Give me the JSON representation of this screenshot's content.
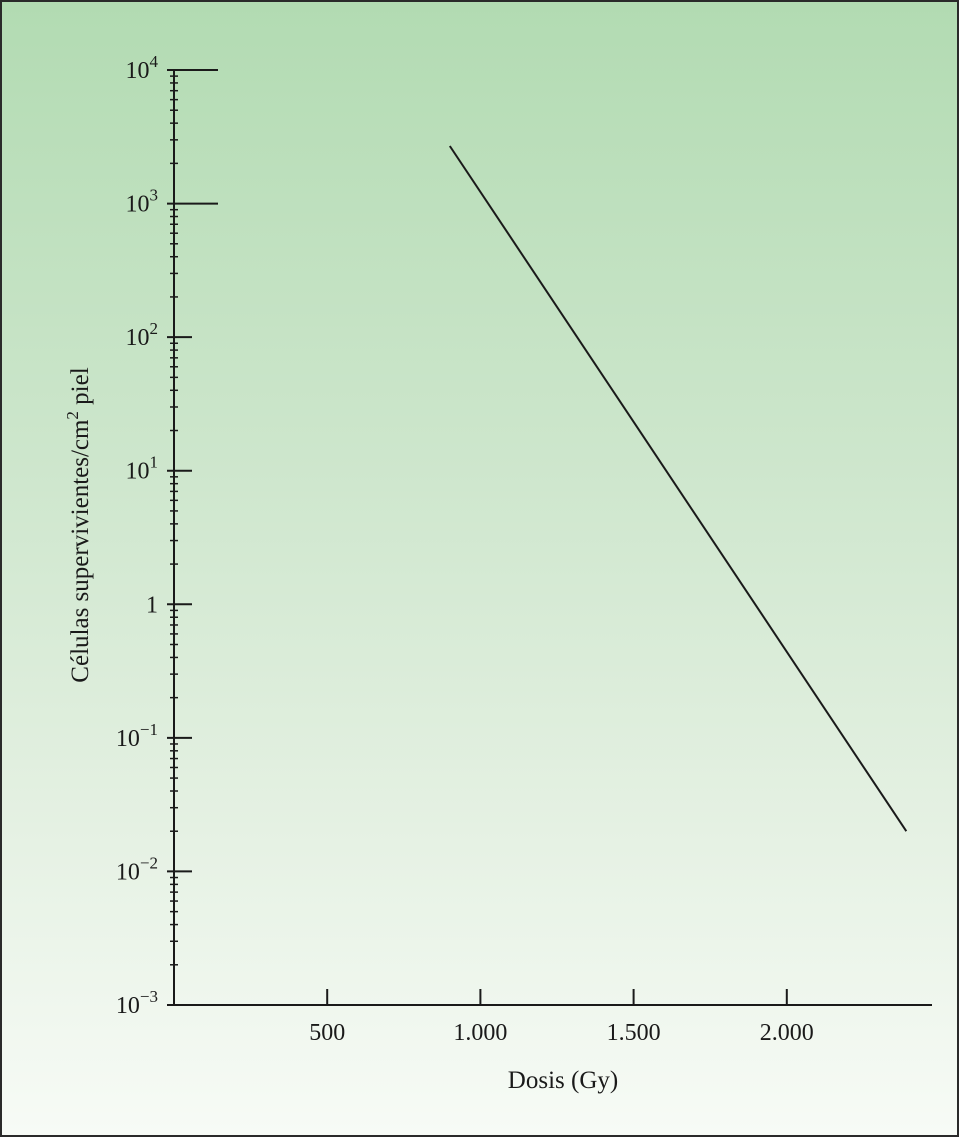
{
  "chart_data": {
    "type": "line",
    "title": "",
    "xlabel": "Dosis (Gy)",
    "ylabel": "Células supervivientes/cm² piel",
    "ylabel_parts": {
      "before": "Células supervivientes/cm",
      "sup": "2",
      "after": " piel"
    },
    "y_scale": "log",
    "xlim": [
      0,
      2500
    ],
    "ylim": [
      0.001,
      10000
    ],
    "x_ticks": [
      {
        "value": 500,
        "label": "500"
      },
      {
        "value": 1000,
        "label": "1.000"
      },
      {
        "value": 1500,
        "label": "1.500"
      },
      {
        "value": 2000,
        "label": "2.000"
      }
    ],
    "y_ticks": [
      {
        "value": 10000,
        "base": "10",
        "exp": "4"
      },
      {
        "value": 1000,
        "base": "10",
        "exp": "3"
      },
      {
        "value": 100,
        "base": "10",
        "exp": "2"
      },
      {
        "value": 10,
        "base": "10",
        "exp": "1"
      },
      {
        "value": 1,
        "base": "1",
        "exp": ""
      },
      {
        "value": 0.1,
        "base": "10",
        "exp": "−1"
      },
      {
        "value": 0.01,
        "base": "10",
        "exp": "−2"
      },
      {
        "value": 0.001,
        "base": "10",
        "exp": "−3"
      }
    ],
    "long_ticks_at": [
      10000,
      1000
    ],
    "grid": false,
    "series": [
      {
        "x": [
          900,
          2390
        ],
        "y": [
          2700,
          0.02
        ]
      }
    ],
    "line_color": "#1a1a1a"
  }
}
